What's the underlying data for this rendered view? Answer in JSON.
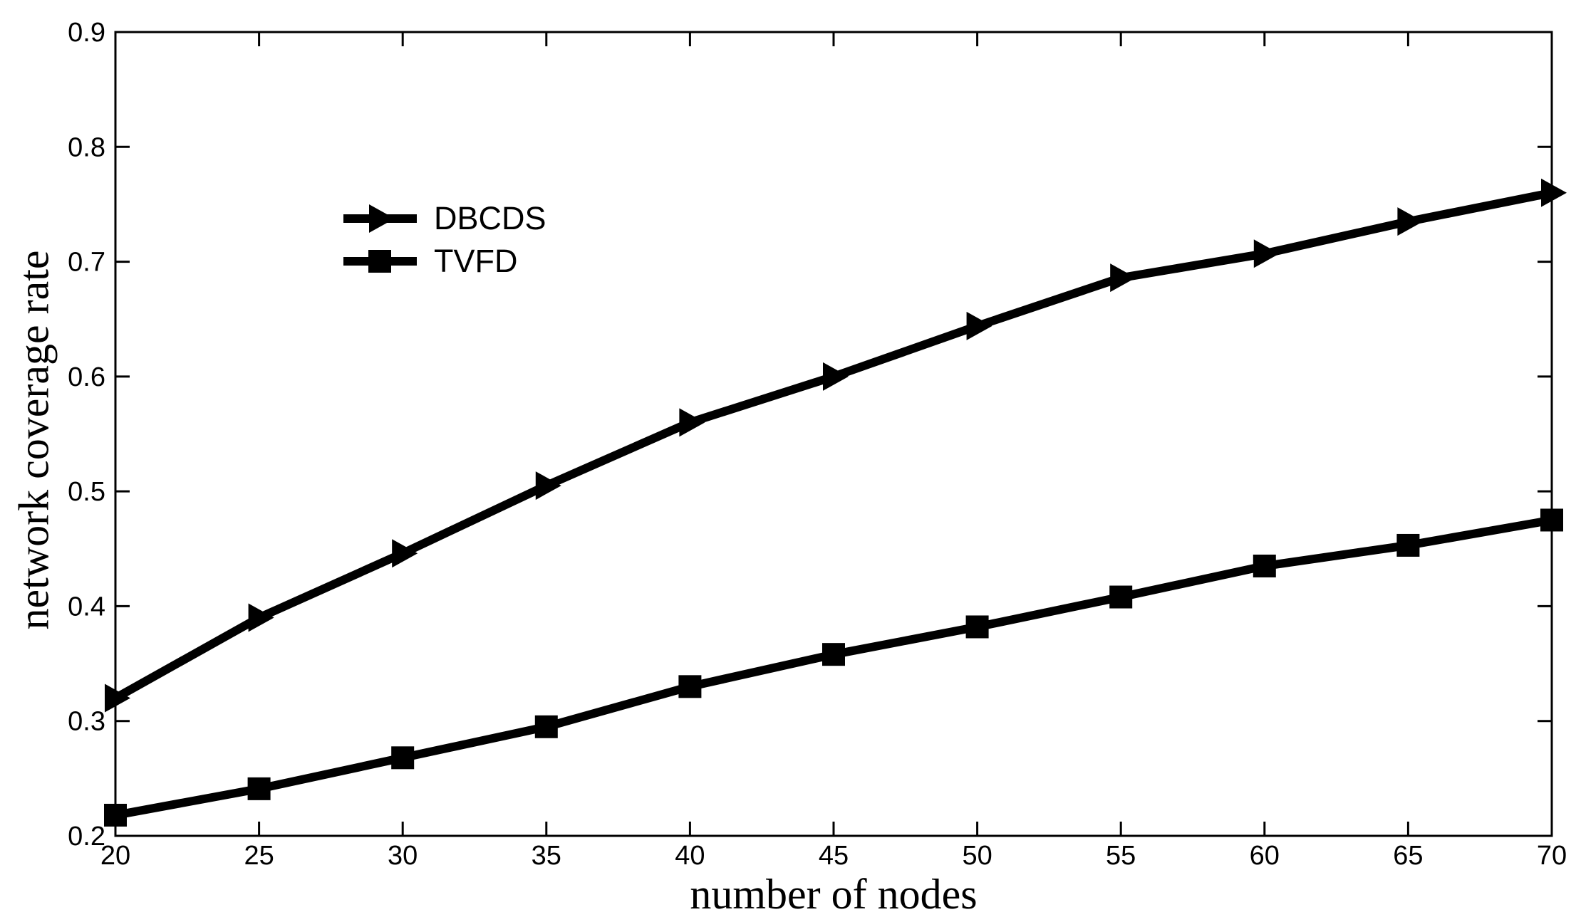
{
  "figure": {
    "xlabel": "number of nodes",
    "ylabel": "network coverage rate",
    "legend": {
      "entries": [
        {
          "label": "DBCDS",
          "marker": "triangle-right"
        },
        {
          "label": "TVFD",
          "marker": "square"
        }
      ],
      "position": "upper-left-inside",
      "border": false
    },
    "colors": {
      "line": "#000000",
      "background": "#ffffff"
    }
  },
  "chart_data": {
    "type": "line",
    "title": "",
    "xlabel": "number of nodes",
    "ylabel": "network coverage rate",
    "x": [
      20,
      25,
      30,
      35,
      40,
      45,
      50,
      55,
      60,
      65,
      70
    ],
    "series": [
      {
        "name": "DBCDS",
        "marker": "triangle-right",
        "color": "#000000",
        "values": [
          0.32,
          0.39,
          0.446,
          0.505,
          0.56,
          0.6,
          0.644,
          0.686,
          0.707,
          0.735,
          0.76
        ]
      },
      {
        "name": "TVFD",
        "marker": "square",
        "color": "#000000",
        "values": [
          0.218,
          0.241,
          0.268,
          0.295,
          0.33,
          0.358,
          0.382,
          0.408,
          0.435,
          0.453,
          0.475
        ]
      }
    ],
    "xlim": [
      20,
      70
    ],
    "ylim": [
      0.2,
      0.9
    ],
    "xticks": [
      20,
      25,
      30,
      35,
      40,
      45,
      50,
      55,
      60,
      65,
      70
    ],
    "yticks": [
      0.2,
      0.3,
      0.4,
      0.5,
      0.6,
      0.7,
      0.8,
      0.9
    ],
    "grid": false,
    "legend_position": "upper-left-inside"
  }
}
